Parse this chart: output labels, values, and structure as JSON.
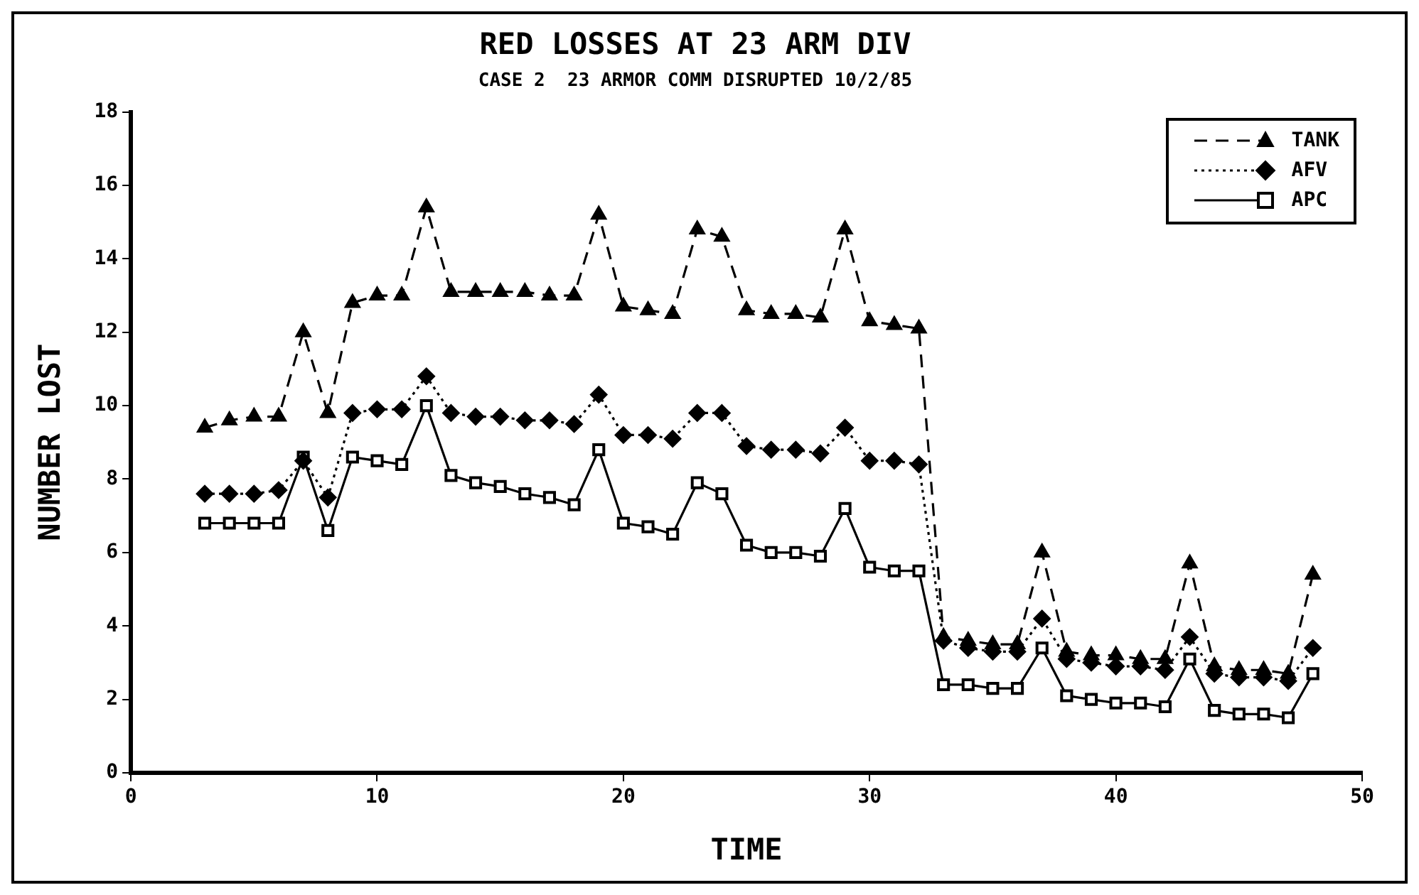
{
  "chart_data": {
    "type": "line",
    "title": "RED LOSSES AT 23 ARM DIV",
    "subtitle": "CASE 2  23 ARMOR COMM DISRUPTED 10/2/85",
    "xlabel": "TIME",
    "ylabel": "NUMBER LOST",
    "x": [
      3,
      4,
      5,
      6,
      7,
      8,
      9,
      10,
      11,
      12,
      13,
      14,
      15,
      16,
      17,
      18,
      19,
      20,
      21,
      22,
      23,
      24,
      25,
      26,
      27,
      28,
      29,
      30,
      31,
      32,
      33,
      34,
      35,
      36,
      37,
      38,
      39,
      40,
      41,
      42,
      43,
      44,
      45,
      46,
      47,
      48
    ],
    "series": [
      {
        "name": "TANK",
        "color": "#000000",
        "marker": "triangle",
        "line_style": "dashed",
        "values": [
          9.4,
          9.6,
          9.7,
          9.7,
          12.0,
          9.8,
          12.8,
          13.0,
          13.0,
          15.4,
          13.1,
          13.1,
          13.1,
          13.1,
          13.0,
          13.0,
          15.2,
          12.7,
          12.6,
          12.5,
          14.8,
          14.6,
          12.6,
          12.5,
          12.5,
          12.4,
          14.8,
          12.3,
          12.2,
          12.1,
          3.7,
          3.6,
          3.5,
          3.5,
          6.0,
          3.3,
          3.2,
          3.2,
          3.1,
          3.1,
          5.7,
          2.9,
          2.8,
          2.8,
          2.7,
          5.4
        ]
      },
      {
        "name": "AFV",
        "color": "#000000",
        "marker": "diamond",
        "line_style": "dotted",
        "values": [
          7.6,
          7.6,
          7.6,
          7.7,
          8.5,
          7.5,
          9.8,
          9.9,
          9.9,
          10.8,
          9.8,
          9.7,
          9.7,
          9.6,
          9.6,
          9.5,
          10.3,
          9.2,
          9.2,
          9.1,
          9.8,
          9.8,
          8.9,
          8.8,
          8.8,
          8.7,
          9.4,
          8.5,
          8.5,
          8.4,
          3.6,
          3.4,
          3.3,
          3.3,
          4.2,
          3.1,
          3.0,
          2.9,
          2.9,
          2.8,
          3.7,
          2.7,
          2.6,
          2.6,
          2.5,
          3.4
        ]
      },
      {
        "name": "APC",
        "color": "#000000",
        "marker": "square",
        "line_style": "solid",
        "values": [
          6.8,
          6.8,
          6.8,
          6.8,
          8.6,
          6.6,
          8.6,
          8.5,
          8.4,
          10.0,
          8.1,
          7.9,
          7.8,
          7.6,
          7.5,
          7.3,
          8.8,
          6.8,
          6.7,
          6.5,
          7.9,
          7.6,
          6.2,
          6.0,
          6.0,
          5.9,
          7.2,
          5.6,
          5.5,
          5.5,
          2.4,
          2.4,
          2.3,
          2.3,
          3.4,
          2.1,
          2.0,
          1.9,
          1.9,
          1.8,
          3.1,
          1.7,
          1.6,
          1.6,
          1.5,
          2.7
        ]
      }
    ],
    "xlim": [
      0,
      50
    ],
    "xticks": [
      0,
      10,
      20,
      30,
      40,
      50
    ],
    "ylim": [
      0,
      18
    ],
    "yticks": [
      0,
      2,
      4,
      6,
      8,
      10,
      12,
      14,
      16,
      18
    ],
    "grid": false,
    "legend": "top right"
  }
}
